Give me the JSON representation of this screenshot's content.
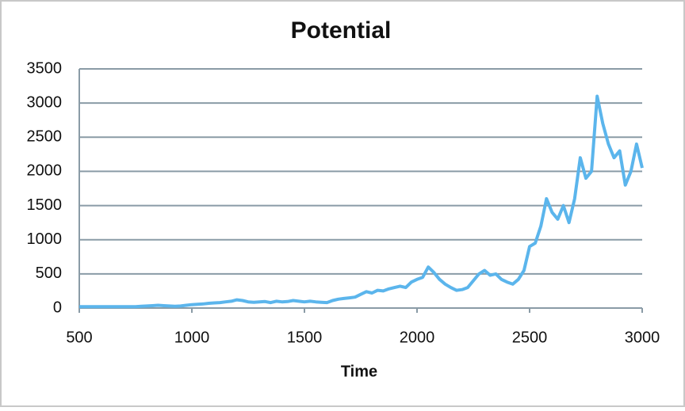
{
  "chart_data": {
    "type": "line",
    "title": "Potential",
    "x_label": "Time",
    "x": [
      500,
      525,
      550,
      575,
      600,
      625,
      650,
      675,
      700,
      725,
      750,
      775,
      800,
      825,
      850,
      875,
      900,
      925,
      950,
      975,
      1000,
      1025,
      1050,
      1075,
      1100,
      1125,
      1150,
      1175,
      1200,
      1225,
      1250,
      1275,
      1300,
      1325,
      1350,
      1375,
      1400,
      1425,
      1450,
      1475,
      1500,
      1525,
      1550,
      1575,
      1600,
      1625,
      1650,
      1675,
      1700,
      1725,
      1750,
      1775,
      1800,
      1825,
      1850,
      1875,
      1900,
      1925,
      1950,
      1975,
      2000,
      2025,
      2050,
      2075,
      2100,
      2125,
      2150,
      2175,
      2200,
      2225,
      2250,
      2275,
      2300,
      2325,
      2350,
      2375,
      2400,
      2425,
      2450,
      2475,
      2500,
      2525,
      2550,
      2575,
      2600,
      2625,
      2650,
      2675,
      2700,
      2725,
      2750,
      2775,
      2800,
      2825,
      2850,
      2875,
      2900,
      2925,
      2950,
      2975,
      3000
    ],
    "series": [
      {
        "color": "#5bb5ec",
        "values": [
          20,
          20,
          20,
          20,
          20,
          20,
          20,
          20,
          20,
          20,
          20,
          25,
          30,
          35,
          40,
          35,
          30,
          25,
          30,
          40,
          50,
          55,
          60,
          70,
          75,
          80,
          90,
          100,
          120,
          110,
          90,
          85,
          90,
          95,
          80,
          100,
          90,
          95,
          110,
          100,
          90,
          100,
          90,
          85,
          80,
          110,
          130,
          140,
          150,
          160,
          200,
          240,
          220,
          260,
          250,
          280,
          300,
          320,
          300,
          380,
          420,
          450,
          600,
          520,
          420,
          350,
          300,
          260,
          270,
          300,
          400,
          500,
          550,
          480,
          500,
          420,
          380,
          350,
          420,
          550,
          900,
          950,
          1200,
          1600,
          1400,
          1300,
          1500,
          1250,
          1600,
          2200,
          1900,
          2000,
          3100,
          2700,
          2400,
          2200,
          2300,
          1800,
          2000,
          2400,
          2050
        ]
      }
    ],
    "xlim": [
      500,
      3000
    ],
    "xticks": [
      500,
      1000,
      1500,
      2000,
      2500,
      3000
    ],
    "ylim": [
      0,
      3500
    ],
    "yticks": [
      0,
      500,
      1000,
      1500,
      2000,
      2500,
      3000,
      3500
    ],
    "grid": true
  }
}
